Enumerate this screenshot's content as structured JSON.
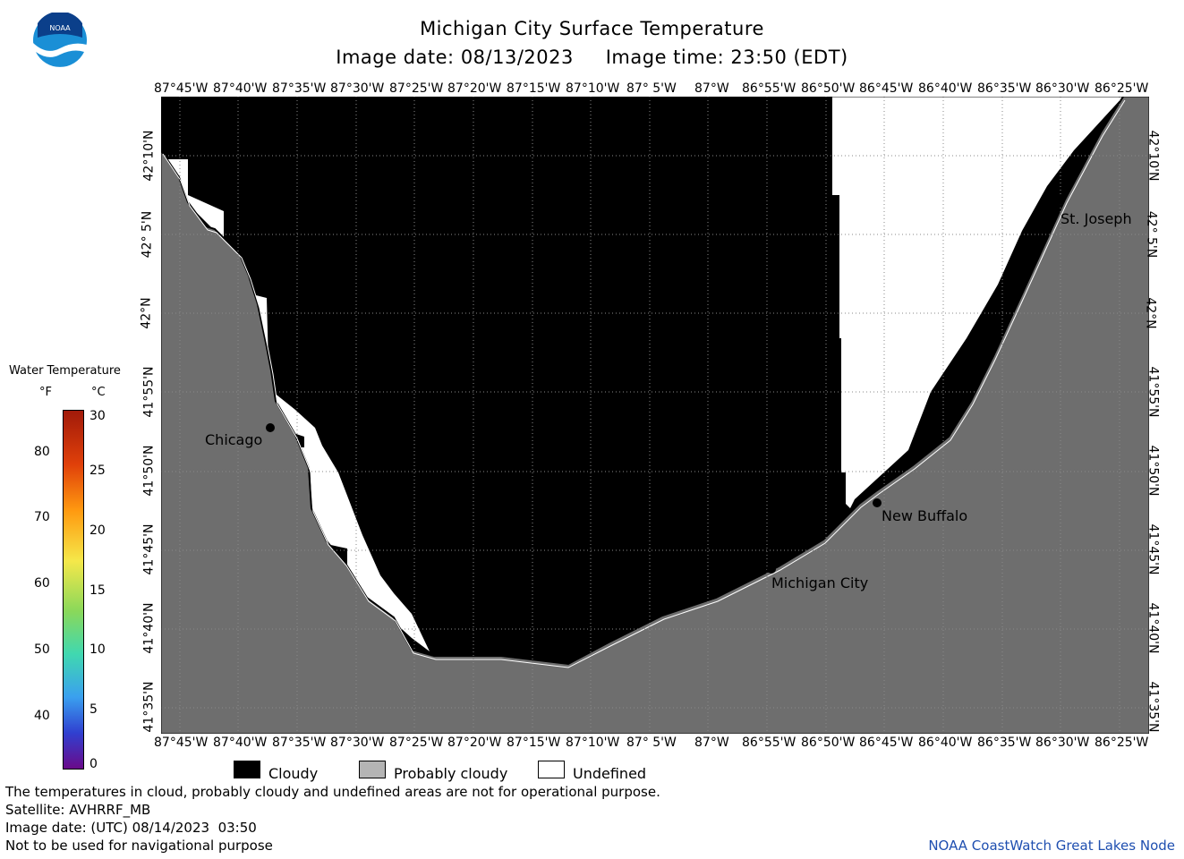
{
  "logo": {
    "text": "NOAA"
  },
  "title": {
    "line1": "Michigan City Surface Temperature",
    "line2": "Image date: 08/13/2023     Image time: 23:50 (EDT)"
  },
  "lon_labels": [
    "87°45'W",
    "87°40'W",
    "87°35'W",
    "87°30'W",
    "87°25'W",
    "87°20'W",
    "87°15'W",
    "87°10'W",
    "87° 5'W",
    "87°W",
    "86°55'W",
    "86°50'W",
    "86°45'W",
    "86°40'W",
    "86°35'W",
    "86°30'W",
    "86°25'W"
  ],
  "lat_labels": [
    "42°10'N",
    "42° 5'N",
    "42°N",
    "41°55'N",
    "41°50'N",
    "41°45'N",
    "41°40'N",
    "41°35'N"
  ],
  "cities": {
    "chicago": "Chicago",
    "st_joseph": "St. Joseph",
    "new_buffalo": "New Buffalo",
    "michigan_city": "Michigan City"
  },
  "colorbar": {
    "title": "Water Temperature",
    "unit_f": "°F",
    "unit_c": "°C",
    "ticks_f": [
      "80",
      "70",
      "60",
      "50",
      "40"
    ],
    "ticks_c": [
      "30",
      "25",
      "20",
      "15",
      "10",
      "5",
      "0"
    ]
  },
  "legend": {
    "cloudy": "Cloudy",
    "probably_cloudy": "Probably cloudy",
    "undefined": "Undefined"
  },
  "colors": {
    "cloud": "#000000",
    "land": "#6e6e6e",
    "undefined": "#ffffff",
    "probably_cloudy": "#b4b4b4",
    "credit": "#1f4fb0"
  },
  "footer": {
    "line1": "The temperatures in cloud, probably cloudy and undefined areas are not for operational purpose.",
    "line2": "Satellite: AVHRRF_MB",
    "line3": "Image date: (UTC) 08/14/2023  03:50",
    "line4": "Not to be used for navigational purpose",
    "credit": "NOAA CoastWatch Great Lakes Node"
  }
}
